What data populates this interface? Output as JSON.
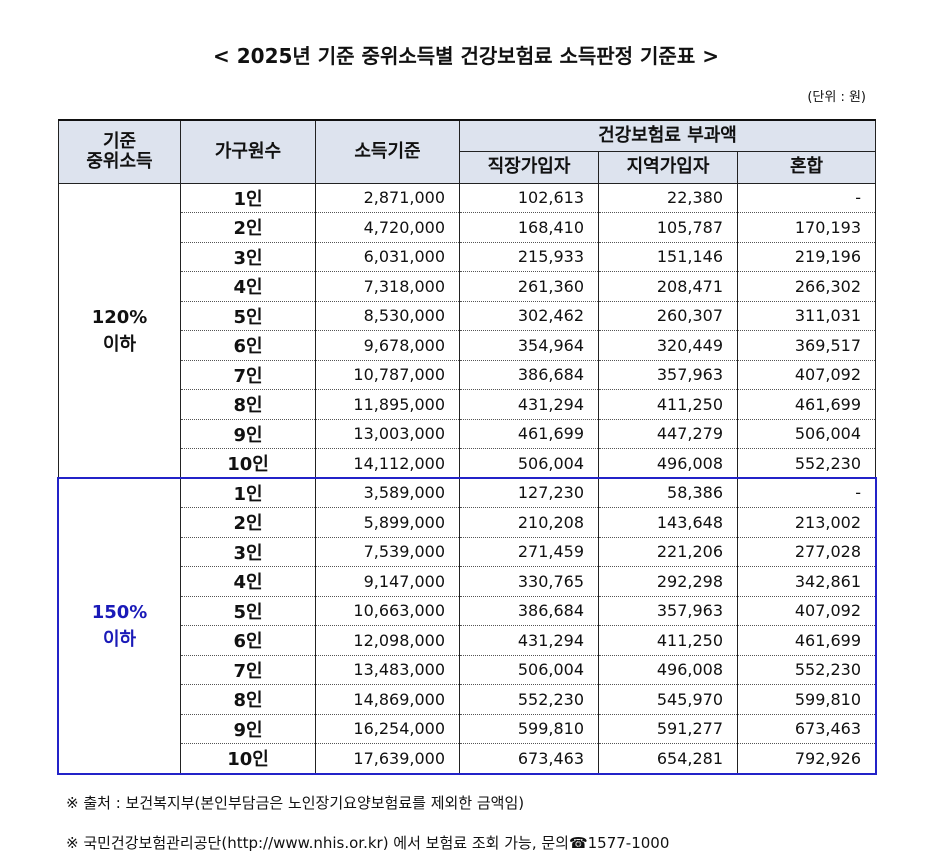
{
  "header": {
    "title": "< 2025년 기준 중위소득별 건강보험료 소득판정 기준표 >",
    "unit": "(단위 : 원)"
  },
  "table": {
    "head": {
      "group": [
        "기준",
        "중위소득"
      ],
      "household": "가구원수",
      "income": "소득기준",
      "premium": "건강보험료 부과액",
      "employee": "직장가입자",
      "regional": "지역가입자",
      "mixed": "혼합"
    },
    "groups": [
      {
        "label": [
          "120%",
          "이하"
        ],
        "rows": [
          [
            "1인",
            "2,871,000",
            "102,613",
            "22,380",
            "-"
          ],
          [
            "2인",
            "4,720,000",
            "168,410",
            "105,787",
            "170,193"
          ],
          [
            "3인",
            "6,031,000",
            "215,933",
            "151,146",
            "219,196"
          ],
          [
            "4인",
            "7,318,000",
            "261,360",
            "208,471",
            "266,302"
          ],
          [
            "5인",
            "8,530,000",
            "302,462",
            "260,307",
            "311,031"
          ],
          [
            "6인",
            "9,678,000",
            "354,964",
            "320,449",
            "369,517"
          ],
          [
            "7인",
            "10,787,000",
            "386,684",
            "357,963",
            "407,092"
          ],
          [
            "8인",
            "11,895,000",
            "431,294",
            "411,250",
            "461,699"
          ],
          [
            "9인",
            "13,003,000",
            "461,699",
            "447,279",
            "506,004"
          ],
          [
            "10인",
            "14,112,000",
            "506,004",
            "496,008",
            "552,230"
          ]
        ]
      },
      {
        "label": [
          "150%",
          "이하"
        ],
        "rows": [
          [
            "1인",
            "3,589,000",
            "127,230",
            "58,386",
            "-"
          ],
          [
            "2인",
            "5,899,000",
            "210,208",
            "143,648",
            "213,002"
          ],
          [
            "3인",
            "7,539,000",
            "271,459",
            "221,206",
            "277,028"
          ],
          [
            "4인",
            "9,147,000",
            "330,765",
            "292,298",
            "342,861"
          ],
          [
            "5인",
            "10,663,000",
            "386,684",
            "357,963",
            "407,092"
          ],
          [
            "6인",
            "12,098,000",
            "431,294",
            "411,250",
            "461,699"
          ],
          [
            "7인",
            "13,483,000",
            "506,004",
            "496,008",
            "552,230"
          ],
          [
            "8인",
            "14,869,000",
            "552,230",
            "545,970",
            "599,810"
          ],
          [
            "9인",
            "16,254,000",
            "599,810",
            "591,277",
            "673,463"
          ],
          [
            "10인",
            "17,639,000",
            "673,463",
            "654,281",
            "792,926"
          ]
        ]
      }
    ]
  },
  "footnotes": [
    "※ 출처 : 보건복지부(본인부담금은 노인장기요양보험료를 제외한 금액임)",
    "※ 국민건강보험관리공단(http://www.nhis.or.kr) 에서 보험료 조회 가능, 문의☎1577-1000"
  ]
}
